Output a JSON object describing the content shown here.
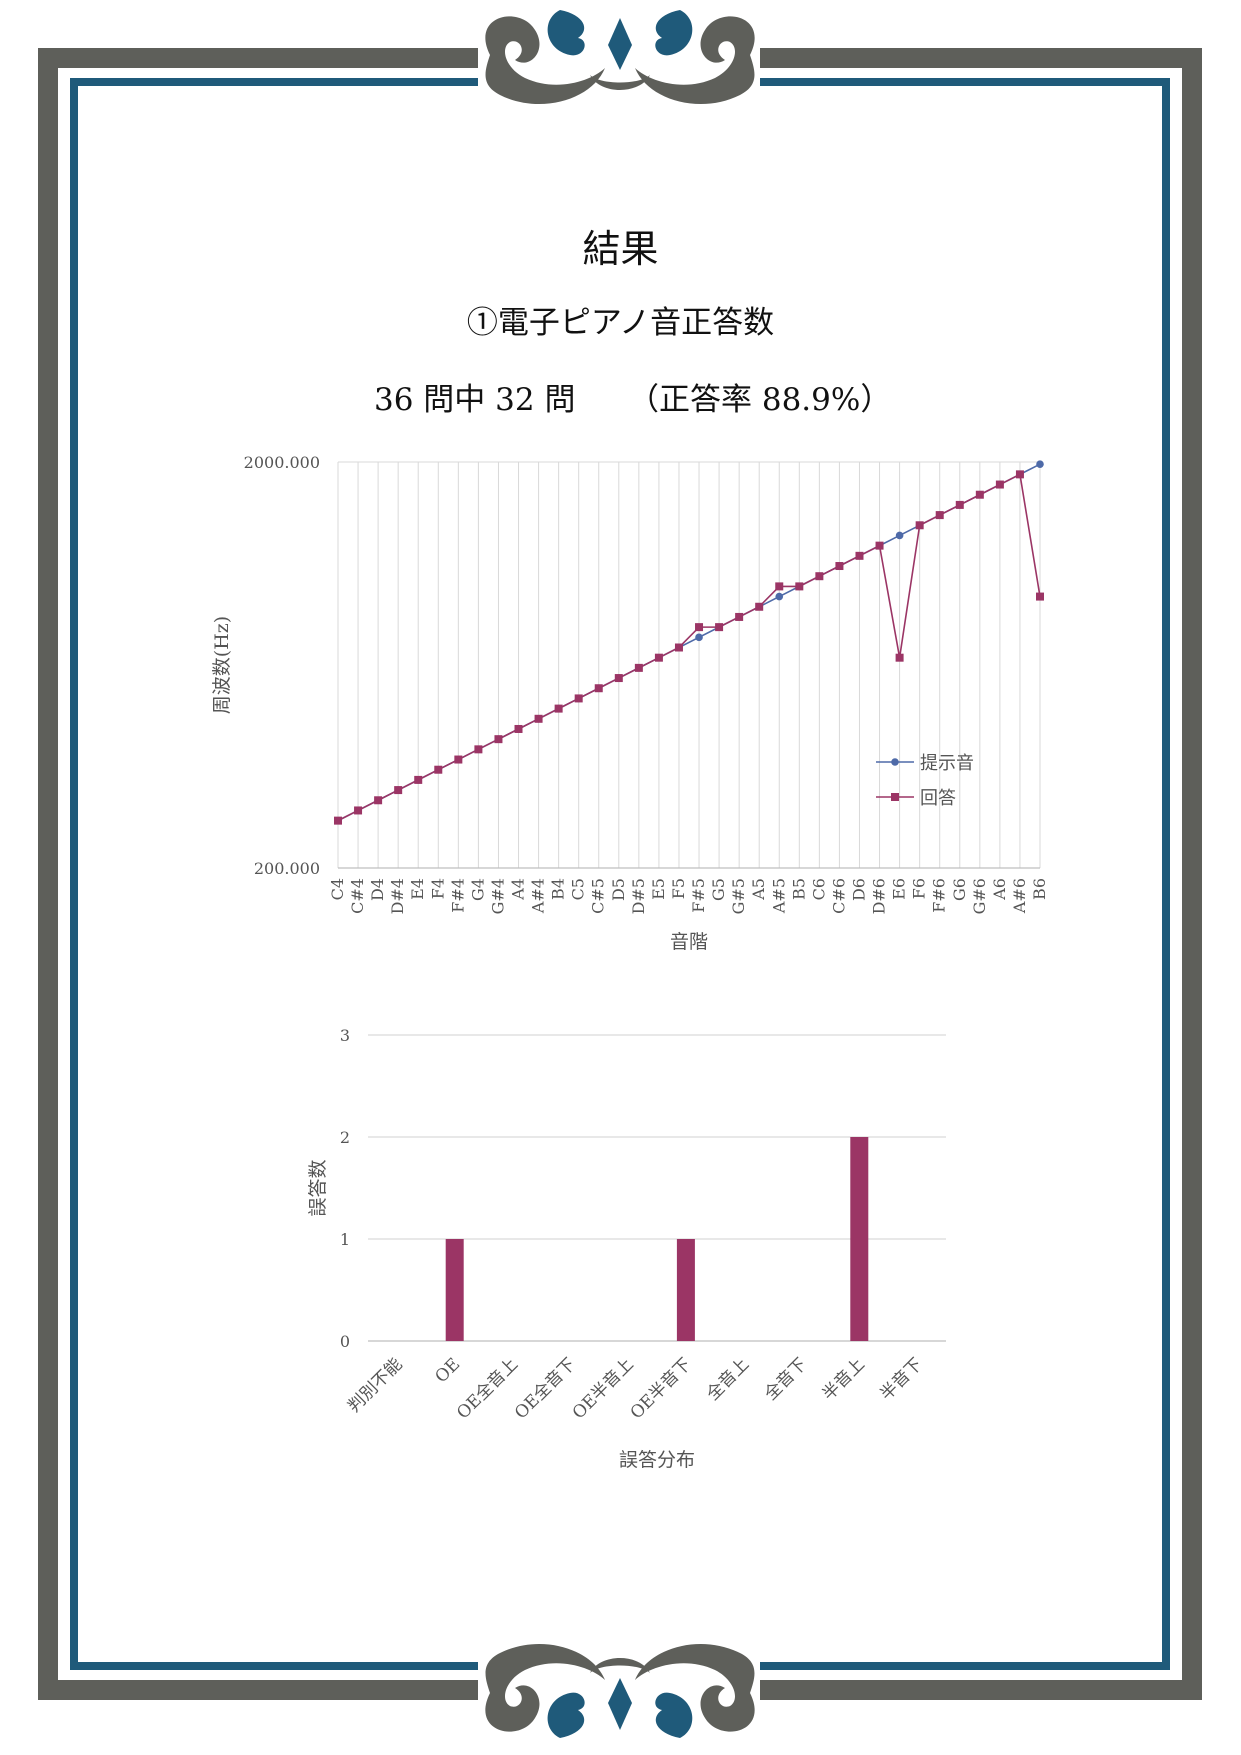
{
  "header": {
    "title": "結果",
    "subtitle": "①電子ピアノ音正答数",
    "score_count": "36 問中 32 問",
    "score_rate": "（正答率 88.9%）"
  },
  "colors": {
    "frame_gray": "#5e5f5a",
    "frame_blue": "#1f5a7a",
    "series_presented": "#4e6aa8",
    "series_answer": "#9b3565",
    "bar": "#9b3565",
    "grid": "#d9d9d9"
  },
  "chart_data": [
    {
      "type": "line",
      "title": "",
      "xlabel": "音階",
      "ylabel": "周波数(Hz)",
      "yscale": "log",
      "ylim": [
        200,
        2000
      ],
      "ytick_labels": [
        "2000.000",
        "200.000"
      ],
      "grid": true,
      "legend_position": "lower-right",
      "categories": [
        "C4",
        "C#4",
        "D4",
        "D#4",
        "E4",
        "F4",
        "F#4",
        "G4",
        "G#4",
        "A4",
        "A#4",
        "B4",
        "C5",
        "C#5",
        "D5",
        "D#5",
        "E5",
        "F5",
        "F#5",
        "G5",
        "G#5",
        "A5",
        "A#5",
        "B5",
        "C6",
        "C#6",
        "D6",
        "D#6",
        "E6",
        "F6",
        "F#6",
        "G6",
        "G#6",
        "A6",
        "A#6",
        "B6"
      ],
      "series": [
        {
          "name": "提示音",
          "marker": "circle",
          "values": [
            261.63,
            277.18,
            293.66,
            311.13,
            329.63,
            349.23,
            369.99,
            392.0,
            415.3,
            440.0,
            466.16,
            493.88,
            523.25,
            554.37,
            587.33,
            622.25,
            659.26,
            698.46,
            739.99,
            783.99,
            830.61,
            880.0,
            932.33,
            987.77,
            1046.5,
            1108.73,
            1174.66,
            1244.51,
            1318.51,
            1396.91,
            1479.98,
            1567.98,
            1661.22,
            1760.0,
            1864.66,
            1975.53
          ]
        },
        {
          "name": "回答",
          "marker": "square",
          "values": [
            261.63,
            277.18,
            293.66,
            311.13,
            329.63,
            349.23,
            369.99,
            392.0,
            415.3,
            440.0,
            466.16,
            493.88,
            523.25,
            554.37,
            587.33,
            622.25,
            659.26,
            698.46,
            783.99,
            783.99,
            830.61,
            880.0,
            987.77,
            987.77,
            1046.5,
            1108.73,
            1174.66,
            1244.51,
            659.26,
            1396.91,
            1479.98,
            1567.98,
            1661.22,
            1760.0,
            1864.66,
            932.33
          ]
        }
      ]
    },
    {
      "type": "bar",
      "title": "",
      "xlabel": "誤答分布",
      "ylabel": "誤答数",
      "ylim": [
        0,
        3
      ],
      "yticks": [
        "0",
        "1",
        "2",
        "3"
      ],
      "grid": true,
      "categories": [
        "判別不能",
        "OE",
        "OE全音上",
        "OE全音下",
        "OE半音上",
        "OE半音下",
        "全音上",
        "全音下",
        "半音上",
        "半音下"
      ],
      "values": [
        0,
        1,
        0,
        0,
        0,
        1,
        0,
        0,
        2,
        0
      ]
    }
  ]
}
